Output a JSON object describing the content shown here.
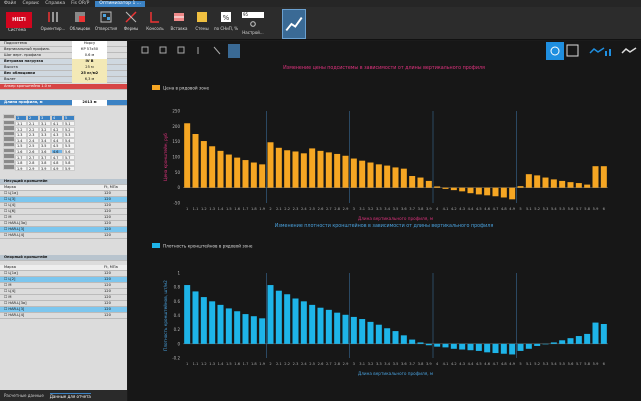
{
  "menubar": {
    "items": [
      "Файл",
      "Сервис",
      "Справка"
    ],
    "app_title": "Fis OR/P",
    "tab_title": "Оптимизатор 1 ..."
  },
  "ribbon": {
    "logo": "HILTI",
    "buttons": [
      {
        "label": "Система",
        "icon": "hilti-logo"
      },
      {
        "label": "Ориентир...",
        "icon": "orientation-icon"
      },
      {
        "label": "Облицовк",
        "icon": "cladding-icon"
      },
      {
        "label": "Отверстия",
        "icon": "openings-icon"
      },
      {
        "label": "Фермы",
        "icon": "truss-icon"
      },
      {
        "label": "Консоль",
        "icon": "bracket-icon"
      },
      {
        "label": "Вставка",
        "icon": "insert-icon"
      },
      {
        "label": "Стены",
        "icon": "wall-icon"
      },
      {
        "label": "по СНиП, %",
        "icon": "percent-icon"
      },
      {
        "label": "Настрой...",
        "icon": "settings-icon"
      },
      {
        "label": "",
        "icon": "chart-icon"
      }
    ],
    "dropdown_value": "95"
  },
  "panel": {
    "rows": [
      {
        "label": "Подсистема",
        "value": "Норсу"
      },
      {
        "label": "Вертикальный профиль",
        "value": "КР 57х50"
      },
      {
        "label": "Шаг верт. профиля",
        "value": "0.6 м"
      },
      {
        "label": "Ветровая нагрузка",
        "value": "IV В"
      },
      {
        "label": "Высота",
        "value": "25 м"
      },
      {
        "label": "Вес облицовки",
        "value": "25 кг/м2"
      },
      {
        "label": "Вылет",
        "value": "6,3 м"
      },
      {
        "label": "Анкер кронштейна 1.0 м",
        "value": ""
      },
      {
        "label": "Длина профиля, м",
        "value": "2013 м"
      }
    ],
    "grid": [
      [
        "",
        "1",
        "2",
        "3",
        "4",
        "5"
      ],
      [
        "",
        "1.1",
        "2.1",
        "3.1",
        "4.1",
        "5.1"
      ],
      [
        "",
        "1.2",
        "2.2",
        "3.2",
        "4.2",
        "5.2"
      ],
      [
        "",
        "1.3",
        "2.3",
        "3.3",
        "4.3",
        "5.3"
      ],
      [
        "",
        "1.4",
        "2.4",
        "3.4",
        "4.4",
        "5.4"
      ],
      [
        "",
        "1.5",
        "2.5",
        "3.5",
        "4.5",
        "5.5"
      ],
      [
        "",
        "1.6",
        "2.6",
        "3.6",
        "4.6",
        "5.6"
      ],
      [
        "",
        "1.7",
        "2.7",
        "3.7",
        "4.7",
        "5.7"
      ],
      [
        "",
        "1.8",
        "2.8",
        "3.8",
        "4.8",
        "5.8"
      ],
      [
        "",
        "1.9",
        "2.9",
        "3.9",
        "4.9",
        "5.9"
      ]
    ],
    "bearing_title": "Несущий кронштейн",
    "bearing_headers": [
      "Марка",
      "Ft, МПа"
    ],
    "bearing_rows": [
      [
        "L[1а]",
        "120"
      ],
      [
        "L[3]",
        "120"
      ],
      [
        "L[4]",
        "120"
      ],
      [
        "L[6]",
        "120"
      ],
      [
        "M",
        "120"
      ],
      [
        "HAR-L[3а]",
        "120"
      ],
      [
        "HAR-L[3]",
        "120"
      ],
      [
        "HAR-L[4]",
        "120"
      ]
    ],
    "support_title": "Опорный кронштейн",
    "support_headers": [
      "Марка",
      "Ft, МПа"
    ],
    "support_rows": [
      [
        "L[1а]",
        "120"
      ],
      [
        "L[2]",
        "120"
      ],
      [
        "M",
        "120"
      ],
      [
        "L[4]",
        "120"
      ],
      [
        "M",
        "120"
      ],
      [
        "HAR-L[3а]",
        "120"
      ],
      [
        "HAR-L[3]",
        "120"
      ],
      [
        "HAR-L[4]",
        "120"
      ]
    ],
    "tabs": [
      "Расчетные данные",
      "Данные для отчета"
    ]
  },
  "chart_data": [
    {
      "type": "bar",
      "title": "Изменение цены подсистемы в зависимости от длины вертикального профиля",
      "ylabel": "Цена кронштейн, руб",
      "xlabel": "Длина вертикального профиля, м",
      "series": [
        {
          "name": "Цена в рядовой зоне",
          "color": "#f5a623"
        }
      ],
      "ylim": [
        -50,
        250
      ],
      "yticks": [
        -50,
        0,
        50,
        100,
        150,
        200,
        250
      ],
      "categories": [
        "1",
        "1.1",
        "1.2",
        "1.3",
        "1.4",
        "1.5",
        "1.6",
        "1.7",
        "1.8",
        "1.9",
        "2",
        "2.1",
        "2.2",
        "2.3",
        "2.4",
        "2.5",
        "2.6",
        "2.7",
        "2.8",
        "2.9",
        "3",
        "3.1",
        "3.2",
        "3.3",
        "3.4",
        "3.5",
        "3.6",
        "3.7",
        "3.8",
        "3.9",
        "4",
        "4.1",
        "4.2",
        "4.3",
        "4.4",
        "4.5",
        "4.6",
        "4.7",
        "4.8",
        "4.9",
        "5",
        "5.1",
        "5.2",
        "5.3",
        "5.4",
        "5.5",
        "5.6",
        "5.7",
        "5.8",
        "5.9",
        "6"
      ],
      "values": [
        210,
        175,
        152,
        135,
        120,
        108,
        98,
        90,
        82,
        76,
        148,
        130,
        122,
        118,
        112,
        128,
        120,
        115,
        110,
        104,
        95,
        88,
        82,
        76,
        72,
        66,
        62,
        38,
        33,
        22,
        4,
        -4,
        -8,
        -12,
        -18,
        -22,
        -25,
        -28,
        -32,
        -38,
        5,
        44,
        40,
        33,
        27,
        22,
        18,
        15,
        10,
        70,
        70
      ],
      "separators": [
        10,
        20,
        30,
        40
      ]
    },
    {
      "type": "bar",
      "title": "Изменение плотности кронштейнов в зависимости от длины вертикального профиля",
      "ylabel": "Плотность кронштейнов, шт/м2",
      "xlabel": "Длина вертикального профиля, м",
      "series": [
        {
          "name": "Плотность кронштейнов в рядовой зоне",
          "color": "#1eb4e8"
        }
      ],
      "ylim": [
        -0.2,
        1
      ],
      "yticks": [
        -0.2,
        0,
        0.2,
        0.4,
        0.6,
        0.8,
        1
      ],
      "categories": [
        "1",
        "1.1",
        "1.2",
        "1.3",
        "1.4",
        "1.5",
        "1.6",
        "1.7",
        "1.8",
        "1.9",
        "2",
        "2.1",
        "2.2",
        "2.3",
        "2.4",
        "2.5",
        "2.6",
        "2.7",
        "2.8",
        "2.9",
        "3",
        "3.1",
        "3.2",
        "3.3",
        "3.4",
        "3.5",
        "3.6",
        "3.7",
        "3.8",
        "3.9",
        "4",
        "4.1",
        "4.2",
        "4.3",
        "4.4",
        "4.5",
        "4.6",
        "4.7",
        "4.8",
        "4.9",
        "5",
        "5.1",
        "5.2",
        "5.3",
        "5.4",
        "5.5",
        "5.6",
        "5.7",
        "5.8",
        "5.9",
        "6"
      ],
      "values": [
        0.83,
        0.74,
        0.66,
        0.6,
        0.55,
        0.5,
        0.46,
        0.42,
        0.39,
        0.36,
        0.83,
        0.75,
        0.7,
        0.64,
        0.6,
        0.55,
        0.51,
        0.48,
        0.44,
        0.41,
        0.38,
        0.35,
        0.31,
        0.27,
        0.22,
        0.18,
        0.12,
        0.06,
        0.02,
        -0.02,
        -0.04,
        -0.05,
        -0.07,
        -0.08,
        -0.09,
        -0.1,
        -0.12,
        -0.13,
        -0.14,
        -0.15,
        -0.1,
        -0.07,
        -0.03,
        0,
        0.02,
        0.05,
        0.08,
        0.11,
        0.14,
        0.3,
        0.28
      ],
      "separators": [
        10,
        20,
        30,
        40
      ]
    }
  ]
}
